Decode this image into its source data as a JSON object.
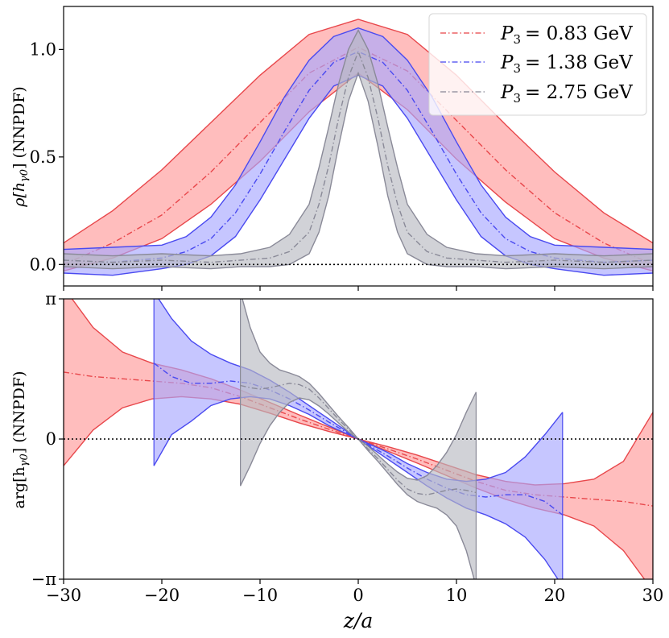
{
  "chart_data": [
    {
      "type": "line",
      "panel": "top",
      "ylabel_main": "ρ[h",
      "ylabel_sub": "γ0",
      "ylabel_end": "] (NNPDF)",
      "xlim": [
        -30,
        30
      ],
      "ylim": [
        -0.1,
        1.2
      ],
      "yticks": [
        {
          "v": 0.0,
          "label": "0.0"
        },
        {
          "v": 0.5,
          "label": "0.5"
        },
        {
          "v": 1.0,
          "label": "1.0"
        }
      ],
      "reference_line": 0,
      "legend_position": "top-right",
      "series": [
        {
          "name": "P",
          "sub": "3",
          "value_text": "= 0.83 GeV",
          "color": "#e8474b",
          "fill": "#ff9a9a",
          "x": [
            -30,
            -25,
            -20,
            -15,
            -10,
            -5,
            0,
            5,
            10,
            15,
            20,
            25,
            30
          ],
          "mid": [
            0.0,
            0.1,
            0.23,
            0.43,
            0.66,
            0.89,
            1.01,
            0.9,
            0.67,
            0.44,
            0.24,
            0.1,
            0.0
          ],
          "upper": [
            0.1,
            0.25,
            0.44,
            0.66,
            0.88,
            1.07,
            1.14,
            1.07,
            0.88,
            0.65,
            0.43,
            0.24,
            0.1
          ],
          "lower": [
            -0.03,
            0.03,
            0.12,
            0.28,
            0.48,
            0.71,
            0.89,
            0.72,
            0.49,
            0.29,
            0.12,
            0.03,
            -0.03
          ]
        },
        {
          "name": "P",
          "sub": "3",
          "value_text": "= 1.38 GeV",
          "color": "#4a4af0",
          "fill": "#a7a7ff",
          "x": [
            -30,
            -25,
            -20,
            -17.5,
            -15,
            -12.5,
            -10,
            -7.5,
            -5,
            -2.5,
            0,
            2.5,
            5,
            7.5,
            10,
            12.5,
            15,
            17.5,
            20,
            25,
            30
          ],
          "mid": [
            0.02,
            0.01,
            0.03,
            0.06,
            0.12,
            0.24,
            0.42,
            0.62,
            0.81,
            0.94,
            0.99,
            0.94,
            0.81,
            0.62,
            0.42,
            0.24,
            0.12,
            0.06,
            0.03,
            0.01,
            0.02
          ],
          "upper": [
            0.07,
            0.08,
            0.09,
            0.13,
            0.22,
            0.37,
            0.57,
            0.78,
            0.95,
            1.06,
            1.1,
            1.06,
            0.95,
            0.78,
            0.57,
            0.37,
            0.22,
            0.13,
            0.09,
            0.08,
            0.07
          ],
          "lower": [
            -0.04,
            -0.05,
            -0.02,
            0.0,
            0.04,
            0.13,
            0.3,
            0.49,
            0.68,
            0.83,
            0.88,
            0.83,
            0.68,
            0.49,
            0.3,
            0.13,
            0.04,
            0.0,
            -0.02,
            -0.05,
            -0.04
          ]
        },
        {
          "name": "P",
          "sub": "3",
          "value_text": "= 2.75 GeV",
          "color": "#8a8a98",
          "fill": "#b9bac2",
          "x": [
            -30,
            -25,
            -20,
            -15,
            -12,
            -9,
            -7,
            -5,
            -4,
            -3,
            -2,
            -1,
            0,
            1,
            2,
            3,
            4,
            5,
            7,
            9,
            12,
            15,
            20,
            25,
            30
          ],
          "mid": [
            0.02,
            0.01,
            0.02,
            0.01,
            0.02,
            0.03,
            0.06,
            0.15,
            0.28,
            0.46,
            0.68,
            0.87,
            0.99,
            0.87,
            0.68,
            0.46,
            0.28,
            0.15,
            0.06,
            0.03,
            0.02,
            0.01,
            0.02,
            0.01,
            0.02
          ],
          "upper": [
            0.05,
            0.04,
            0.05,
            0.04,
            0.05,
            0.08,
            0.14,
            0.28,
            0.45,
            0.64,
            0.84,
            1.0,
            1.09,
            1.0,
            0.84,
            0.64,
            0.45,
            0.28,
            0.14,
            0.08,
            0.05,
            0.04,
            0.05,
            0.04,
            0.05
          ],
          "lower": [
            -0.01,
            -0.02,
            -0.01,
            -0.02,
            -0.01,
            -0.01,
            0.0,
            0.05,
            0.15,
            0.32,
            0.55,
            0.76,
            0.89,
            0.76,
            0.55,
            0.32,
            0.15,
            0.05,
            0.0,
            -0.01,
            -0.01,
            -0.02,
            -0.01,
            -0.02,
            -0.01
          ]
        }
      ]
    },
    {
      "type": "line",
      "panel": "bottom",
      "xlabel": "z/a",
      "ylabel_main": "arg[h",
      "ylabel_sub": "γ0",
      "ylabel_end": "] (NNPDF)",
      "xlim": [
        -30,
        30
      ],
      "ylim": [
        -3.1416,
        3.1416
      ],
      "xticks": [
        {
          "v": -30,
          "label": "−30"
        },
        {
          "v": -20,
          "label": "−20"
        },
        {
          "v": -10,
          "label": "−10"
        },
        {
          "v": 0,
          "label": "0"
        },
        {
          "v": 10,
          "label": "10"
        },
        {
          "v": 20,
          "label": "20"
        },
        {
          "v": 30,
          "label": "30"
        }
      ],
      "yticks": [
        {
          "v": -3.1416,
          "label": "−π"
        },
        {
          "v": 0,
          "label": "0"
        },
        {
          "v": 3.1416,
          "label": "π"
        }
      ],
      "reference_line": 0,
      "series": [
        {
          "name": "P3 = 0.83 GeV",
          "color": "#e8474b",
          "fill": "#ff9a9a",
          "x": [
            -30,
            -27,
            -24,
            -21,
            -18,
            -15,
            -12,
            -9,
            -6,
            -3,
            0,
            3,
            6,
            9,
            12,
            15,
            18,
            21,
            24,
            27,
            30
          ],
          "mid": [
            1.5,
            1.4,
            1.35,
            1.3,
            1.25,
            1.15,
            0.95,
            0.7,
            0.45,
            0.22,
            0.0,
            -0.22,
            -0.45,
            -0.7,
            -0.95,
            -1.15,
            -1.25,
            -1.3,
            -1.35,
            -1.4,
            -1.5
          ],
          "upper": [
            3.4,
            2.5,
            1.95,
            1.7,
            1.55,
            1.35,
            1.1,
            0.82,
            0.54,
            0.27,
            0.0,
            -0.17,
            -0.36,
            -0.58,
            -0.8,
            -0.95,
            -1.03,
            -1.0,
            -0.9,
            -0.5,
            0.6
          ],
          "lower": [
            -0.6,
            0.2,
            0.7,
            0.9,
            0.95,
            0.9,
            0.78,
            0.58,
            0.36,
            0.17,
            0.0,
            -0.27,
            -0.54,
            -0.82,
            -1.1,
            -1.35,
            -1.55,
            -1.7,
            -1.95,
            -2.5,
            -3.4
          ]
        },
        {
          "name": "P3 = 1.38 GeV",
          "color": "#4a4af0",
          "fill": "#a7a7ff",
          "x": [
            -20.8,
            -19,
            -17,
            -15,
            -13,
            -11,
            -9,
            -7,
            -5,
            -3,
            0,
            3,
            5,
            7,
            9,
            11,
            13,
            15,
            17,
            19,
            20.8
          ],
          "mid": [
            1.7,
            1.4,
            1.25,
            1.25,
            1.3,
            1.25,
            1.1,
            0.9,
            0.65,
            0.38,
            0.0,
            -0.38,
            -0.65,
            -0.9,
            -1.1,
            -1.25,
            -1.3,
            -1.25,
            -1.25,
            -1.4,
            -1.7
          ],
          "upper": [
            3.3,
            2.7,
            2.2,
            1.9,
            1.7,
            1.55,
            1.32,
            1.05,
            0.75,
            0.45,
            0.0,
            -0.3,
            -0.55,
            -0.75,
            -0.9,
            -0.95,
            -0.9,
            -0.75,
            -0.4,
            0.1,
            0.6
          ],
          "lower": [
            -0.6,
            0.1,
            0.4,
            0.75,
            0.9,
            0.95,
            0.9,
            0.75,
            0.55,
            0.3,
            0.0,
            -0.45,
            -0.75,
            -1.05,
            -1.32,
            -1.55,
            -1.7,
            -1.9,
            -2.2,
            -2.7,
            -3.3
          ]
        },
        {
          "name": "P3 = 2.75 GeV",
          "color": "#8a8a98",
          "fill": "#b9bac2",
          "x": [
            -12,
            -11,
            -10,
            -9,
            -8,
            -7,
            -6,
            -5,
            -4,
            -3,
            -2,
            -1,
            0,
            1,
            2,
            3,
            4,
            5,
            6,
            7,
            8,
            9,
            10,
            11,
            12
          ],
          "mid": [
            1.2,
            1.15,
            1.12,
            1.15,
            1.2,
            1.25,
            1.22,
            1.12,
            0.92,
            0.68,
            0.44,
            0.22,
            0.0,
            -0.22,
            -0.44,
            -0.68,
            -0.92,
            -1.12,
            -1.22,
            -1.25,
            -1.2,
            -1.15,
            -1.12,
            -1.15,
            -1.2
          ],
          "upper": [
            3.3,
            2.5,
            1.95,
            1.7,
            1.55,
            1.48,
            1.4,
            1.25,
            1.02,
            0.76,
            0.5,
            0.26,
            0.0,
            -0.16,
            -0.36,
            -0.56,
            -0.74,
            -0.88,
            -0.92,
            -0.82,
            -0.6,
            -0.3,
            0.1,
            0.6,
            1.05
          ],
          "lower": [
            -1.05,
            -0.6,
            -0.1,
            0.3,
            0.6,
            0.82,
            0.92,
            0.88,
            0.74,
            0.56,
            0.36,
            0.16,
            0.0,
            -0.26,
            -0.5,
            -0.76,
            -1.02,
            -1.25,
            -1.4,
            -1.48,
            -1.55,
            -1.7,
            -1.95,
            -2.5,
            -3.3
          ]
        }
      ]
    }
  ]
}
